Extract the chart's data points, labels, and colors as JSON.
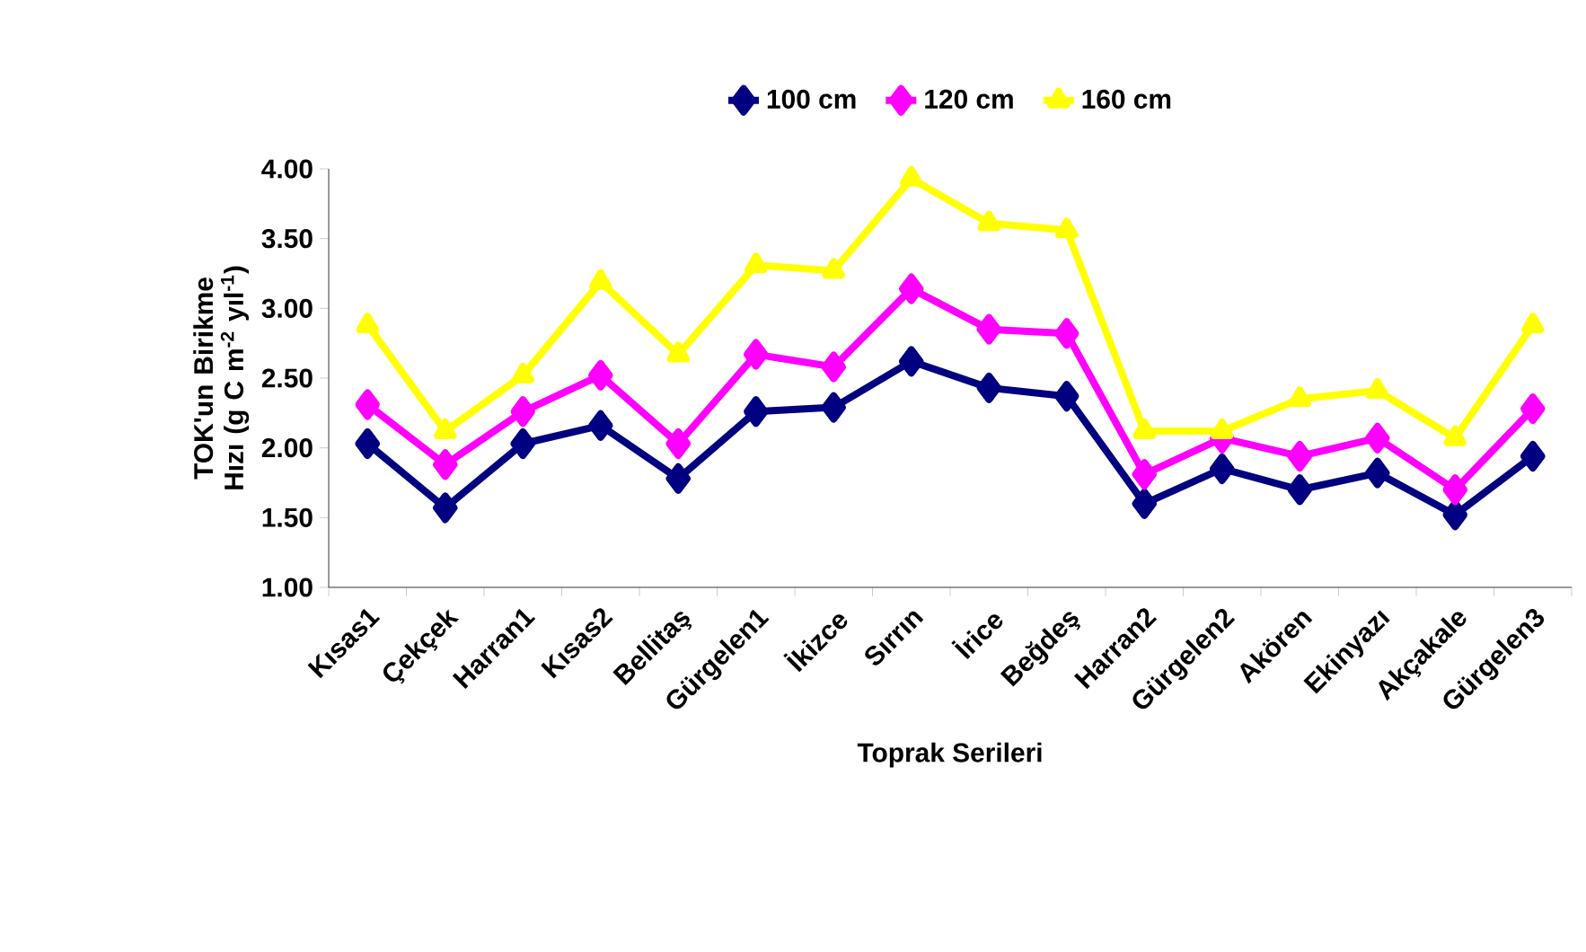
{
  "chart_data": {
    "type": "line",
    "xlabel": "Toprak Serileri",
    "ylabel": "TOK'un Birikme Hızı (g C m$^{-2}$ yıl$^{-1}$)",
    "categories": [
      "Kısas1",
      "Çekçek",
      "Harran1",
      "Kısas2",
      "Bellitaş",
      "Gürgelen1",
      "İkizce",
      "Sırrın",
      "İrice",
      "Beğdeş",
      "Harran2",
      "Gürgelen2",
      "Akören",
      "Ekinyazı",
      "Akçakale",
      "Gürgelen3"
    ],
    "series": [
      {
        "name": "100 cm",
        "color": "#000080",
        "marker": "diamond",
        "values": [
          2.03,
          1.57,
          2.03,
          2.16,
          1.78,
          2.26,
          2.29,
          2.62,
          2.43,
          2.37,
          1.6,
          1.85,
          1.7,
          1.82,
          1.52,
          1.94
        ]
      },
      {
        "name": "120 cm",
        "color": "#ff00ff",
        "marker": "diamond",
        "values": [
          2.31,
          1.88,
          2.26,
          2.52,
          2.03,
          2.67,
          2.58,
          3.14,
          2.85,
          2.82,
          1.81,
          2.07,
          1.94,
          2.07,
          1.7,
          2.28
        ]
      },
      {
        "name": "160 cm",
        "color": "#ffff00",
        "marker": "triangle",
        "values": [
          2.88,
          2.12,
          2.52,
          3.19,
          2.67,
          3.31,
          3.27,
          3.93,
          3.61,
          3.56,
          2.12,
          2.12,
          2.35,
          2.41,
          2.07,
          2.88
        ]
      }
    ],
    "ylim": [
      1.0,
      4.0
    ],
    "yticks": [
      {
        "value": 1.0,
        "label": "1.00"
      },
      {
        "value": 1.5,
        "label": "1.50"
      },
      {
        "value": 2.0,
        "label": "2.00"
      },
      {
        "value": 2.5,
        "label": "2.50"
      },
      {
        "value": 3.0,
        "label": "3.00"
      },
      {
        "value": 3.5,
        "label": "3.50"
      },
      {
        "value": 4.0,
        "label": "4.00"
      }
    ],
    "grid": false,
    "legend": "top",
    "line_style": "solid"
  }
}
